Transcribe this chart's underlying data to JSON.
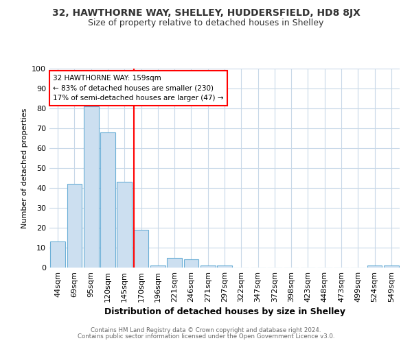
{
  "title1": "32, HAWTHORNE WAY, SHELLEY, HUDDERSFIELD, HD8 8JX",
  "title2": "Size of property relative to detached houses in Shelley",
  "xlabel": "Distribution of detached houses by size in Shelley",
  "ylabel": "Number of detached properties",
  "footer1": "Contains HM Land Registry data © Crown copyright and database right 2024.",
  "footer2": "Contains public sector information licensed under the Open Government Licence v3.0.",
  "categories": [
    "44sqm",
    "69sqm",
    "95sqm",
    "120sqm",
    "145sqm",
    "170sqm",
    "196sqm",
    "221sqm",
    "246sqm",
    "271sqm",
    "297sqm",
    "322sqm",
    "347sqm",
    "372sqm",
    "398sqm",
    "423sqm",
    "448sqm",
    "473sqm",
    "499sqm",
    "524sqm",
    "549sqm"
  ],
  "values": [
    13,
    42,
    81,
    68,
    43,
    19,
    1,
    5,
    4,
    1,
    1,
    0,
    0,
    0,
    0,
    0,
    0,
    0,
    0,
    1,
    1
  ],
  "bar_color": "#ccdff0",
  "bar_edge_color": "#6aaed6",
  "annotation_label": "32 HAWTHORNE WAY: 159sqm",
  "annotation_line1": "← 83% of detached houses are smaller (230)",
  "annotation_line2": "17% of semi-detached houses are larger (47) →",
  "ylim": [
    0,
    100
  ],
  "yticks": [
    0,
    10,
    20,
    30,
    40,
    50,
    60,
    70,
    80,
    90,
    100
  ],
  "bg_color": "#ffffff",
  "grid_color": "#c8d8e8",
  "red_line_index": 5.0,
  "title1_fontsize": 10,
  "title2_fontsize": 9
}
